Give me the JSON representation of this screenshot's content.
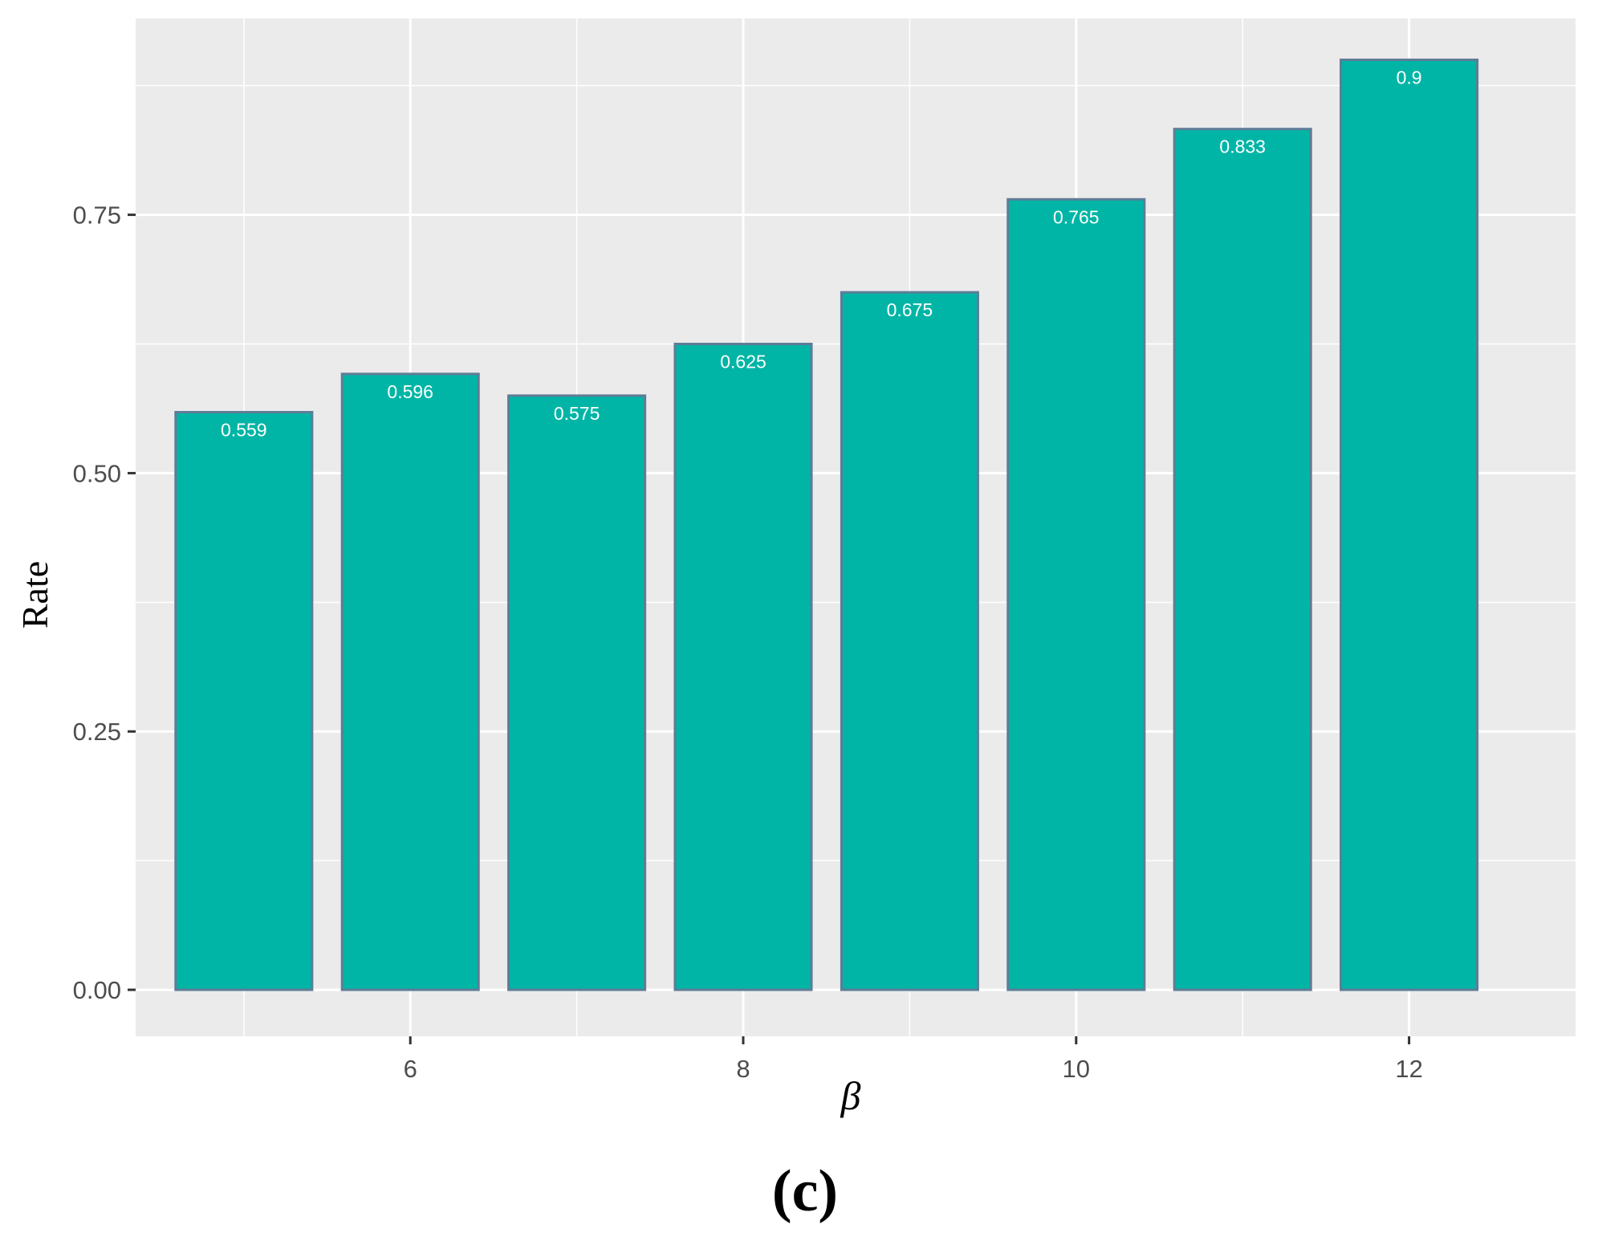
{
  "chart_data": {
    "type": "bar",
    "title": "",
    "panel_label": "(c)",
    "xlabel": "β",
    "ylabel": "Rate",
    "x": [
      5,
      6,
      7,
      8,
      9,
      10,
      11,
      12
    ],
    "values": [
      0.559,
      0.596,
      0.575,
      0.625,
      0.675,
      0.765,
      0.833,
      0.9
    ],
    "data_labels": [
      "0.559",
      "0.596",
      "0.575",
      "0.625",
      "0.675",
      "0.765",
      "0.833",
      "0.9"
    ],
    "xticks": [
      6,
      8,
      10,
      12
    ],
    "xtick_labels": [
      "6",
      "8",
      "10",
      "12"
    ],
    "yticks": [
      0.0,
      0.25,
      0.5,
      0.75
    ],
    "ytick_labels": [
      "0.00",
      "0.25",
      "0.50",
      "0.75"
    ],
    "xlim": [
      4.35,
      13.0
    ],
    "ylim": [
      -0.045,
      0.94
    ],
    "grid": true,
    "legend": null,
    "colors": {
      "bar_fill": "#00b5a5",
      "bar_outline": "#5f7c97",
      "panel_background": "#ebebeb",
      "grid": "#ffffff",
      "label_text": "#ffffff",
      "axis_text": "#4d4d4d"
    }
  }
}
